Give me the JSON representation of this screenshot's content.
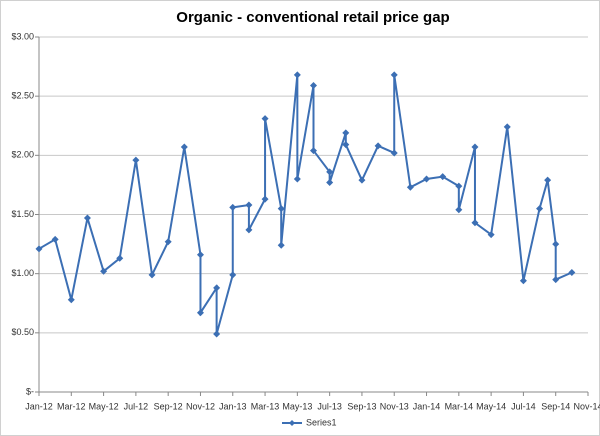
{
  "chart_data": {
    "type": "line",
    "title": "Organic - conventional  retail price gap",
    "x": [
      0,
      1,
      2,
      3,
      4,
      5,
      6,
      7,
      8,
      9,
      10,
      10,
      11,
      11,
      12,
      12,
      13,
      13,
      14,
      14,
      15,
      15,
      16,
      16,
      17,
      17,
      18,
      18,
      19,
      19,
      20,
      21,
      22,
      22,
      23,
      24,
      25,
      26,
      26,
      27,
      27,
      28,
      29,
      30,
      31,
      31.5,
      32,
      32,
      33
    ],
    "series": [
      {
        "name": "Series1",
        "color": "#3c6fb4",
        "values": [
          1.21,
          1.29,
          0.78,
          1.47,
          1.02,
          1.13,
          1.96,
          0.99,
          1.27,
          2.07,
          1.16,
          0.67,
          0.88,
          0.49,
          0.99,
          1.56,
          1.58,
          1.37,
          1.63,
          2.31,
          1.55,
          1.24,
          2.68,
          1.8,
          2.59,
          2.04,
          1.86,
          1.77,
          2.19,
          2.09,
          1.79,
          2.08,
          2.02,
          2.68,
          1.73,
          1.8,
          1.82,
          1.74,
          1.54,
          2.07,
          1.43,
          1.33,
          2.24,
          0.94,
          1.55,
          1.79,
          1.25,
          0.95,
          1.01
        ]
      }
    ],
    "xlim": [
      0,
      34
    ],
    "xticks": [
      {
        "value": 0,
        "label": "Jan-12"
      },
      {
        "value": 2,
        "label": "Mar-12"
      },
      {
        "value": 4,
        "label": "May-12"
      },
      {
        "value": 6,
        "label": "Jul-12"
      },
      {
        "value": 8,
        "label": "Sep-12"
      },
      {
        "value": 10,
        "label": "Nov-12"
      },
      {
        "value": 12,
        "label": "Jan-13"
      },
      {
        "value": 14,
        "label": "Mar-13"
      },
      {
        "value": 16,
        "label": "May-13"
      },
      {
        "value": 18,
        "label": "Jul-13"
      },
      {
        "value": 20,
        "label": "Sep-13"
      },
      {
        "value": 22,
        "label": "Nov-13"
      },
      {
        "value": 24,
        "label": "Jan-14"
      },
      {
        "value": 26,
        "label": "Mar-14"
      },
      {
        "value": 28,
        "label": "May-14"
      },
      {
        "value": 30,
        "label": "Jul-14"
      },
      {
        "value": 32,
        "label": "Sep-14"
      },
      {
        "value": 34,
        "label": "Nov-14"
      }
    ],
    "ylim": [
      0,
      3
    ],
    "yticks": [
      {
        "value": 0,
        "label": "$-"
      },
      {
        "value": 0.5,
        "label": "$0.50"
      },
      {
        "value": 1,
        "label": "$1.00"
      },
      {
        "value": 1.5,
        "label": "$1.50"
      },
      {
        "value": 2,
        "label": "$2.00"
      },
      {
        "value": 2.5,
        "label": "$2.50"
      },
      {
        "value": 3,
        "label": "$3.00"
      }
    ],
    "grid": true,
    "legend": "bottom"
  }
}
